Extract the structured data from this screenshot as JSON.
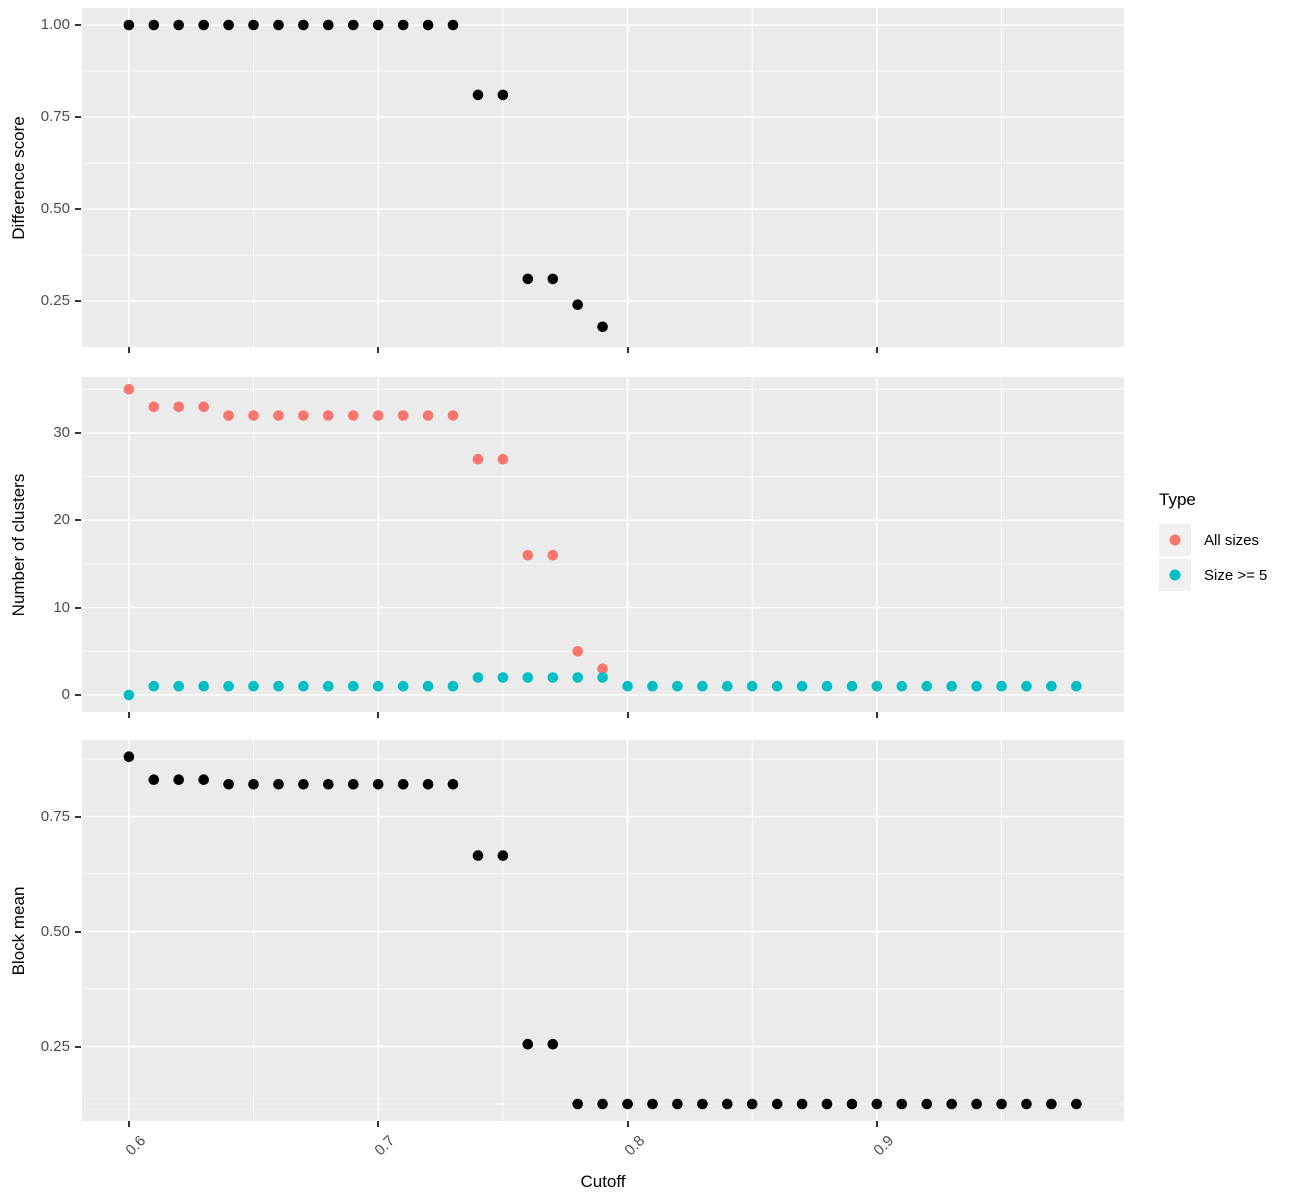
{
  "chart_data": {
    "type": "scatter",
    "title": "",
    "xlabel": "Cutoff",
    "x": {
      "lim": [
        0.5812,
        0.9991
      ],
      "major": [
        0.6,
        0.7,
        0.8,
        0.9
      ],
      "major_labels": [
        "0.6",
        "0.7",
        "0.8",
        "0.9"
      ],
      "minor": [
        0.65,
        0.75,
        0.85,
        0.95
      ]
    },
    "panels": [
      {
        "ylabel": "Difference score",
        "ylim": [
          0.125,
          1.0462
        ],
        "y_major": [
          0.25,
          0.5,
          0.75,
          1.0
        ],
        "y_major_labels": [
          "0.25",
          "0.50",
          "0.75",
          "1.00"
        ],
        "y_minor": [
          0.375,
          0.625,
          0.875
        ],
        "series": [
          {
            "name": "difference-score",
            "color": "#000000",
            "x": [
              0.6,
              0.61,
              0.62,
              0.63,
              0.64,
              0.65,
              0.66,
              0.67,
              0.68,
              0.69,
              0.7,
              0.71,
              0.72,
              0.73,
              0.74,
              0.75,
              0.76,
              0.77,
              0.78,
              0.79
            ],
            "y": [
              1.0,
              1.0,
              1.0,
              1.0,
              1.0,
              1.0,
              1.0,
              1.0,
              1.0,
              1.0,
              1.0,
              1.0,
              1.0,
              1.0,
              0.81,
              0.81,
              0.31,
              0.31,
              0.24,
              0.18
            ]
          }
        ]
      },
      {
        "ylabel": "Number of clusters",
        "ylim": [
          -1.95,
          36.41
        ],
        "y_major": [
          0,
          10,
          20,
          30
        ],
        "y_major_labels": [
          "0",
          "10",
          "20",
          "30"
        ],
        "y_minor": [
          5,
          15,
          25,
          35
        ],
        "series": [
          {
            "name": "all-sizes",
            "color": "#F8766D",
            "x": [
              0.6,
              0.61,
              0.62,
              0.63,
              0.64,
              0.65,
              0.66,
              0.67,
              0.68,
              0.69,
              0.7,
              0.71,
              0.72,
              0.73,
              0.74,
              0.75,
              0.76,
              0.77,
              0.78,
              0.79
            ],
            "y": [
              35,
              33,
              33,
              33,
              32,
              32,
              32,
              32,
              32,
              32,
              32,
              32,
              32,
              32,
              27,
              27,
              16,
              16,
              5,
              3
            ]
          },
          {
            "name": "size-ge-5",
            "color": "#00BFC4",
            "x": [
              0.6,
              0.61,
              0.62,
              0.63,
              0.64,
              0.65,
              0.66,
              0.67,
              0.68,
              0.69,
              0.7,
              0.71,
              0.72,
              0.73,
              0.74,
              0.75,
              0.76,
              0.77,
              0.78,
              0.79,
              0.8,
              0.81,
              0.82,
              0.83,
              0.84,
              0.85,
              0.86,
              0.87,
              0.88,
              0.89,
              0.9,
              0.91,
              0.92,
              0.93,
              0.94,
              0.95,
              0.96,
              0.97,
              0.98
            ],
            "y": [
              0,
              1,
              1,
              1,
              1,
              1,
              1,
              1,
              1,
              1,
              1,
              1,
              1,
              1,
              2,
              2,
              2,
              2,
              2,
              2,
              1,
              1,
              1,
              1,
              1,
              1,
              1,
              1,
              1,
              1,
              1,
              1,
              1,
              1,
              1,
              1,
              1,
              1,
              1
            ]
          }
        ]
      },
      {
        "ylabel": "Block mean",
        "ylim": [
          0.088,
          0.9163
        ],
        "y_major": [
          0.25,
          0.5,
          0.75
        ],
        "y_major_labels": [
          "0.25",
          "0.50",
          "0.75"
        ],
        "y_minor": [
          0.125,
          0.375,
          0.625,
          0.875
        ],
        "series": [
          {
            "name": "block-mean",
            "color": "#000000",
            "x": [
              0.6,
              0.61,
              0.62,
              0.63,
              0.64,
              0.65,
              0.66,
              0.67,
              0.68,
              0.69,
              0.7,
              0.71,
              0.72,
              0.73,
              0.74,
              0.75,
              0.76,
              0.77,
              0.78,
              0.79,
              0.8,
              0.81,
              0.82,
              0.83,
              0.84,
              0.85,
              0.86,
              0.87,
              0.88,
              0.89,
              0.9,
              0.91,
              0.92,
              0.93,
              0.94,
              0.95,
              0.96,
              0.97,
              0.98
            ],
            "y": [
              0.88,
              0.83,
              0.83,
              0.83,
              0.82,
              0.82,
              0.82,
              0.82,
              0.82,
              0.82,
              0.82,
              0.82,
              0.82,
              0.82,
              0.665,
              0.665,
              0.255,
              0.255,
              0.125,
              0.125,
              0.125,
              0.125,
              0.125,
              0.125,
              0.125,
              0.125,
              0.125,
              0.125,
              0.125,
              0.125,
              0.125,
              0.125,
              0.125,
              0.125,
              0.125,
              0.125,
              0.125,
              0.125,
              0.125
            ]
          }
        ]
      }
    ],
    "legend": {
      "title": "Type",
      "items": [
        {
          "label": "All sizes",
          "color": "#F8766D"
        },
        {
          "label": "Size >= 5",
          "color": "#00BFC4"
        }
      ]
    },
    "colors": {
      "panel_background": "#EBEBEB",
      "gridline": "#FFFFFF",
      "tick_mark": "#333333",
      "tick_label": "#4D4D4D",
      "axis_title": "#000000",
      "point_black": "#000000",
      "point_red": "#F8766D",
      "point_teal": "#00BFC4",
      "legend_key_background": "#F0F0F0"
    }
  }
}
